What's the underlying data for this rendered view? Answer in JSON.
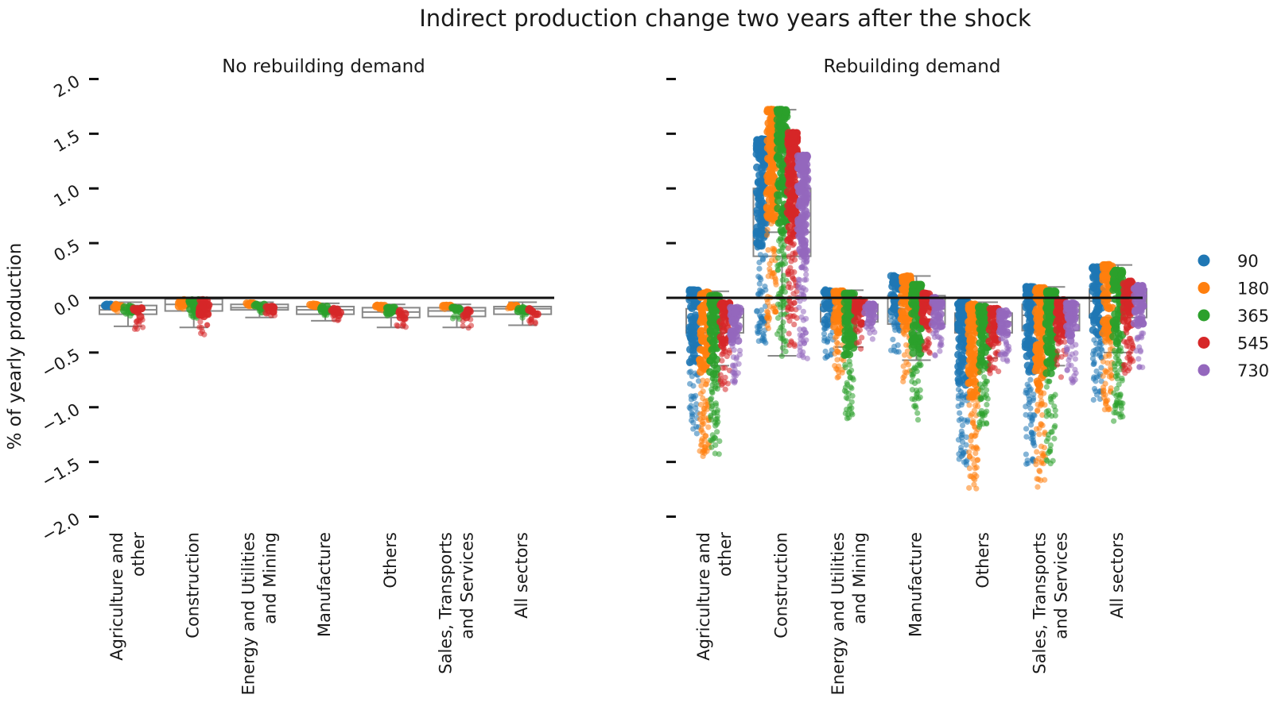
{
  "chart_data": {
    "type": "box-strip",
    "title": "Indirect production change two years after the shock",
    "ylabel": "% of yearly production",
    "ylim": [
      -2.0,
      2.0
    ],
    "yticks": [
      "2.0",
      "1.5",
      "1.0",
      "0.5",
      "0.0",
      "−0.5",
      "−1.0",
      "−1.5",
      "−2.0"
    ],
    "ytick_values": [
      2.0,
      1.5,
      1.0,
      0.5,
      0.0,
      -0.5,
      -1.0,
      -1.5,
      -2.0
    ],
    "reference_line": 0.0,
    "categories": [
      "Agriculture and\nother",
      "Construction",
      "Energy and Utilities\nand Mining",
      "Manufacture",
      "Others",
      "Sales, Transports\nand Services",
      "All sectors"
    ],
    "legend": {
      "placement": "right",
      "entries": [
        {
          "label": "90",
          "color": "#1f77b4"
        },
        {
          "label": "180",
          "color": "#ff7f0e"
        },
        {
          "label": "365",
          "color": "#2ca02c"
        },
        {
          "label": "545",
          "color": "#d62728"
        },
        {
          "label": "730",
          "color": "#9467bd"
        }
      ]
    },
    "panels": [
      {
        "subtitle": "No rebuilding demand",
        "boxes": [
          {
            "q1": -0.15,
            "median": -0.11,
            "q3": -0.07,
            "whisker_low": -0.26,
            "whisker_high": -0.04
          },
          {
            "q1": -0.12,
            "median": -0.06,
            "q3": -0.01,
            "whisker_low": -0.27,
            "whisker_high": -0.01
          },
          {
            "q1": -0.11,
            "median": -0.09,
            "q3": -0.06,
            "whisker_low": -0.18,
            "whisker_high": -0.04
          },
          {
            "q1": -0.15,
            "median": -0.11,
            "q3": -0.08,
            "whisker_low": -0.21,
            "whisker_high": -0.05
          },
          {
            "q1": -0.18,
            "median": -0.13,
            "q3": -0.09,
            "whisker_low": -0.27,
            "whisker_high": -0.06
          },
          {
            "q1": -0.17,
            "median": -0.12,
            "q3": -0.09,
            "whisker_low": -0.27,
            "whisker_high": -0.06
          },
          {
            "q1": -0.15,
            "median": -0.1,
            "q3": -0.08,
            "whisker_low": -0.25,
            "whisker_high": -0.04
          }
        ],
        "series": [
          {
            "name": "90",
            "ranges": [
              [
                -0.09,
                -0.06
              ],
              null,
              null,
              null,
              null,
              null,
              null
            ]
          },
          {
            "name": "180",
            "ranges": [
              [
                -0.13,
                -0.06
              ],
              [
                -0.14,
                -0.02
              ],
              [
                -0.08,
                -0.05
              ],
              [
                -0.09,
                -0.06
              ],
              [
                -0.12,
                -0.07
              ],
              [
                -0.11,
                -0.07
              ],
              [
                -0.1,
                -0.07
              ]
            ]
          },
          {
            "name": "365",
            "ranges": [
              [
                -0.18,
                -0.08
              ],
              [
                -0.25,
                -0.02
              ],
              [
                -0.14,
                -0.06
              ],
              [
                -0.16,
                -0.08
              ],
              [
                -0.19,
                -0.09
              ],
              [
                -0.21,
                -0.09
              ],
              [
                -0.19,
                -0.09
              ]
            ]
          },
          {
            "name": "545",
            "ranges": [
              [
                -0.3,
                -0.09
              ],
              [
                -0.36,
                -0.02
              ],
              [
                -0.18,
                -0.08
              ],
              [
                -0.22,
                -0.1
              ],
              [
                -0.27,
                -0.11
              ],
              [
                -0.28,
                -0.11
              ],
              [
                -0.25,
                -0.1
              ]
            ]
          },
          {
            "name": "730",
            "ranges": [
              null,
              null,
              null,
              null,
              null,
              null,
              null
            ]
          }
        ]
      },
      {
        "subtitle": "Rebuilding demand",
        "boxes": [
          {
            "q1": -0.32,
            "median": -0.18,
            "q3": -0.1,
            "whisker_low": -0.62,
            "whisker_high": 0.06
          },
          {
            "q1": 0.38,
            "median": 0.6,
            "q3": 1.0,
            "whisker_low": -0.53,
            "whisker_high": 1.72
          },
          {
            "q1": -0.22,
            "median": -0.12,
            "q3": -0.06,
            "whisker_low": -0.45,
            "whisker_high": 0.07
          },
          {
            "q1": -0.24,
            "median": -0.1,
            "q3": 0.02,
            "whisker_low": -0.57,
            "whisker_high": 0.2
          },
          {
            "q1": -0.32,
            "median": -0.22,
            "q3": -0.14,
            "whisker_low": -0.55,
            "whisker_high": -0.04
          },
          {
            "q1": -0.3,
            "median": -0.16,
            "q3": -0.06,
            "whisker_low": -0.62,
            "whisker_high": 0.1
          },
          {
            "q1": -0.18,
            "median": -0.03,
            "q3": 0.08,
            "whisker_low": -0.5,
            "whisker_high": 0.3
          }
        ],
        "series": [
          {
            "name": "90",
            "ranges": [
              [
                -1.25,
                0.07
              ],
              [
                -0.52,
                1.45
              ],
              [
                -0.55,
                0.07
              ],
              [
                -0.5,
                0.2
              ],
              [
                -1.58,
                -0.03
              ],
              [
                -1.55,
                0.1
              ],
              [
                -0.96,
                0.28
              ]
            ]
          },
          {
            "name": "180",
            "ranges": [
              [
                -1.46,
                0.05
              ],
              [
                -0.28,
                1.72
              ],
              [
                -0.76,
                0.06
              ],
              [
                -0.77,
                0.2
              ],
              [
                -1.75,
                -0.06
              ],
              [
                -1.74,
                0.09
              ],
              [
                -1.04,
                0.3
              ]
            ]
          },
          {
            "name": "365",
            "ranges": [
              [
                -1.43,
                0.02
              ],
              [
                -0.54,
                1.72
              ],
              [
                -1.14,
                0.04
              ],
              [
                -1.14,
                0.12
              ],
              [
                -1.19,
                -0.08
              ],
              [
                -1.54,
                0.06
              ],
              [
                -1.15,
                0.25
              ]
            ]
          },
          {
            "name": "545",
            "ranges": [
              [
                -0.85,
                -0.05
              ],
              [
                -0.48,
                1.51
              ],
              [
                -0.48,
                -0.02
              ],
              [
                -0.56,
                0.04
              ],
              [
                -0.72,
                -0.1
              ],
              [
                -0.73,
                -0.02
              ],
              [
                -0.71,
                0.15
              ]
            ]
          },
          {
            "name": "730",
            "ranges": [
              [
                -0.79,
                -0.09
              ],
              [
                -0.56,
                1.3
              ],
              [
                -0.41,
                -0.06
              ],
              [
                -0.54,
                0.0
              ],
              [
                -0.58,
                -0.12
              ],
              [
                -0.78,
                -0.05
              ],
              [
                -0.66,
                0.11
              ]
            ]
          }
        ]
      }
    ]
  }
}
